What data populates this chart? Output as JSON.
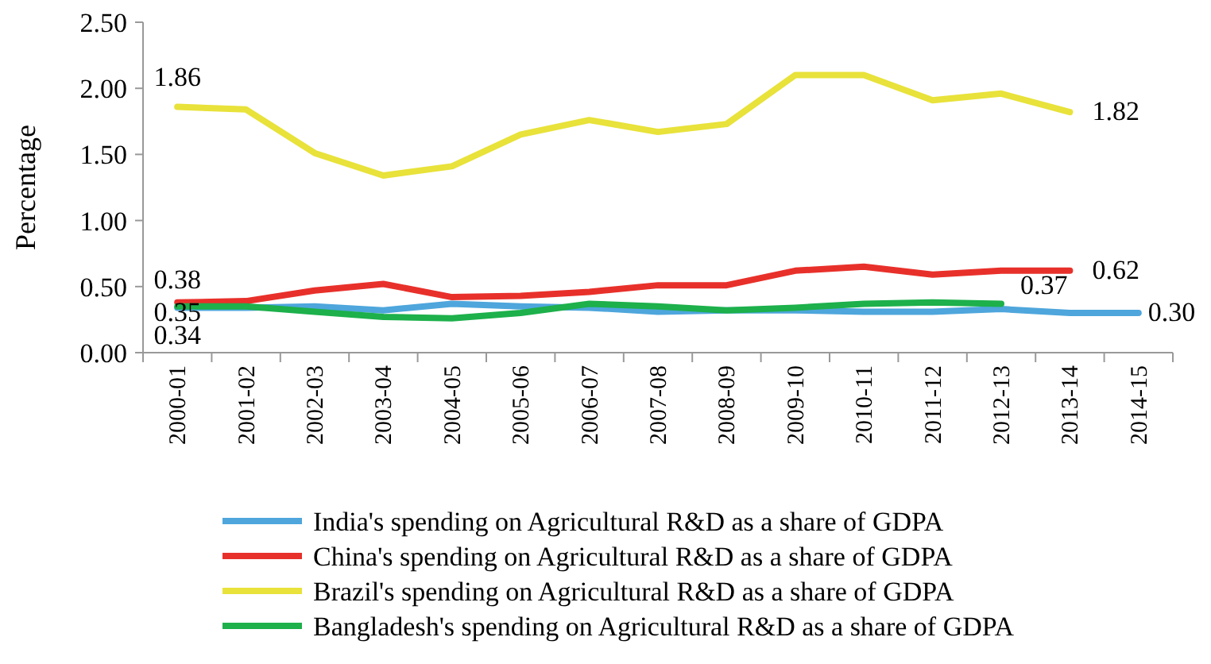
{
  "chart_data": {
    "type": "line",
    "ylabel": "Percentage",
    "categories": [
      "2000-01",
      "2001-02",
      "2002-03",
      "2003-04",
      "2004-05",
      "2005-06",
      "2006-07",
      "2007-08",
      "2008-09",
      "2009-10",
      "2010-11",
      "2011-12",
      "2012-13",
      "2013-14",
      "2014-15"
    ],
    "ylim": [
      0,
      2.5
    ],
    "yticks": [
      "0.00",
      "0.50",
      "1.00",
      "1.50",
      "2.00",
      "2.50"
    ],
    "grid": false,
    "legend": "bottom",
    "line_style": "solid",
    "marker": "none",
    "series": [
      {
        "name": "India's spending on Agricultural R&D as a share of GDPA",
        "color": "#4ea6dc",
        "values": [
          0.34,
          0.34,
          0.35,
          0.32,
          0.37,
          0.35,
          0.34,
          0.31,
          0.32,
          0.32,
          0.31,
          0.31,
          0.33,
          0.3,
          0.3
        ],
        "value_labels": [
          "0.34",
          null,
          null,
          null,
          null,
          null,
          null,
          null,
          null,
          null,
          null,
          null,
          null,
          null,
          "0.30"
        ]
      },
      {
        "name": "China's spending on Agricultural R&D as a share of GDPA",
        "color": "#e8302a",
        "values": [
          0.38,
          0.39,
          0.47,
          0.52,
          0.42,
          0.43,
          0.46,
          0.51,
          0.51,
          0.62,
          0.65,
          0.59,
          0.62,
          0.62,
          null
        ],
        "value_labels": [
          "0.38",
          null,
          null,
          null,
          null,
          null,
          null,
          null,
          null,
          null,
          null,
          null,
          null,
          "0.62",
          null
        ]
      },
      {
        "name": "Brazil's spending on Agricultural R&D as a share of GDPA",
        "color": "#e8e23a",
        "values": [
          1.86,
          1.84,
          1.51,
          1.34,
          1.41,
          1.65,
          1.76,
          1.67,
          1.73,
          2.1,
          2.1,
          1.91,
          1.96,
          1.82,
          null
        ],
        "value_labels": [
          "1.86",
          null,
          null,
          null,
          null,
          null,
          null,
          null,
          null,
          null,
          null,
          null,
          null,
          "1.82",
          null
        ]
      },
      {
        "name": "Bangladesh's spending on Agricultural R&D as a share of GDPA",
        "color": "#1db04b",
        "values": [
          0.35,
          0.35,
          0.31,
          0.27,
          0.26,
          0.3,
          0.37,
          0.35,
          0.32,
          0.34,
          0.37,
          0.38,
          0.37,
          null,
          null
        ],
        "value_labels": [
          "0.35",
          null,
          null,
          null,
          null,
          null,
          null,
          null,
          null,
          null,
          null,
          null,
          "0.37",
          null,
          null
        ]
      }
    ]
  }
}
